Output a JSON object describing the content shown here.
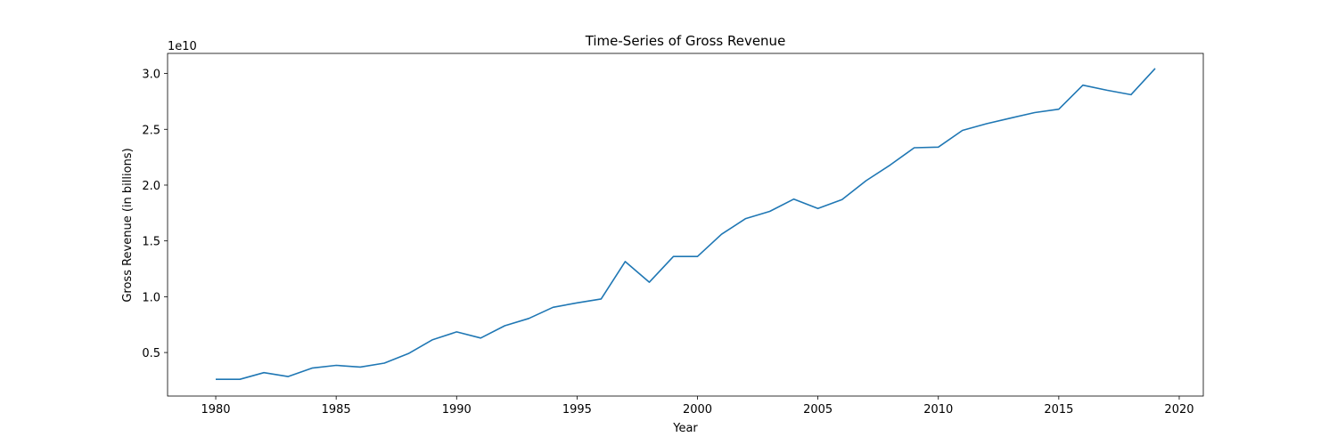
{
  "chart_data": {
    "type": "line",
    "title": "Time-Series of Gross Revenue",
    "xlabel": "Year",
    "ylabel": "Gross Revenue (in billions)",
    "y_offset_label": "1e10",
    "xlim": [
      1978,
      2021
    ],
    "ylim": [
      1100000000,
      31800000000
    ],
    "grid": false,
    "x_ticks": [
      1980,
      1985,
      1990,
      1995,
      2000,
      2005,
      2010,
      2015,
      2020
    ],
    "y_ticks": [
      {
        "value": 5000000000,
        "label": "0.5"
      },
      {
        "value": 10000000000,
        "label": "1.0"
      },
      {
        "value": 15000000000,
        "label": "1.5"
      },
      {
        "value": 20000000000,
        "label": "2.0"
      },
      {
        "value": 25000000000,
        "label": "2.5"
      },
      {
        "value": 30000000000,
        "label": "3.0"
      }
    ],
    "series": [
      {
        "color": "#1f77b4",
        "x": [
          1980,
          1981,
          1982,
          1983,
          1984,
          1985,
          1986,
          1987,
          1988,
          1989,
          1990,
          1991,
          1992,
          1993,
          1994,
          1995,
          1996,
          1997,
          1998,
          1999,
          2000,
          2001,
          2002,
          2003,
          2004,
          2005,
          2006,
          2007,
          2008,
          2009,
          2010,
          2011,
          2012,
          2013,
          2014,
          2015,
          2016,
          2017,
          2018,
          2019
        ],
        "values": [
          2600000000,
          2600000000,
          3200000000,
          2850000000,
          3600000000,
          3850000000,
          3700000000,
          4050000000,
          4900000000,
          6150000000,
          6850000000,
          6300000000,
          7400000000,
          8050000000,
          9050000000,
          9450000000,
          9800000000,
          13150000000,
          11300000000,
          13600000000,
          13600000000,
          15600000000,
          17000000000,
          17650000000,
          18750000000,
          17900000000,
          18700000000,
          20400000000,
          21800000000,
          23350000000,
          23400000000,
          24900000000,
          25500000000,
          26000000000,
          26500000000,
          26800000000,
          28950000000,
          28500000000,
          28100000000,
          30450000000
        ]
      }
    ]
  }
}
